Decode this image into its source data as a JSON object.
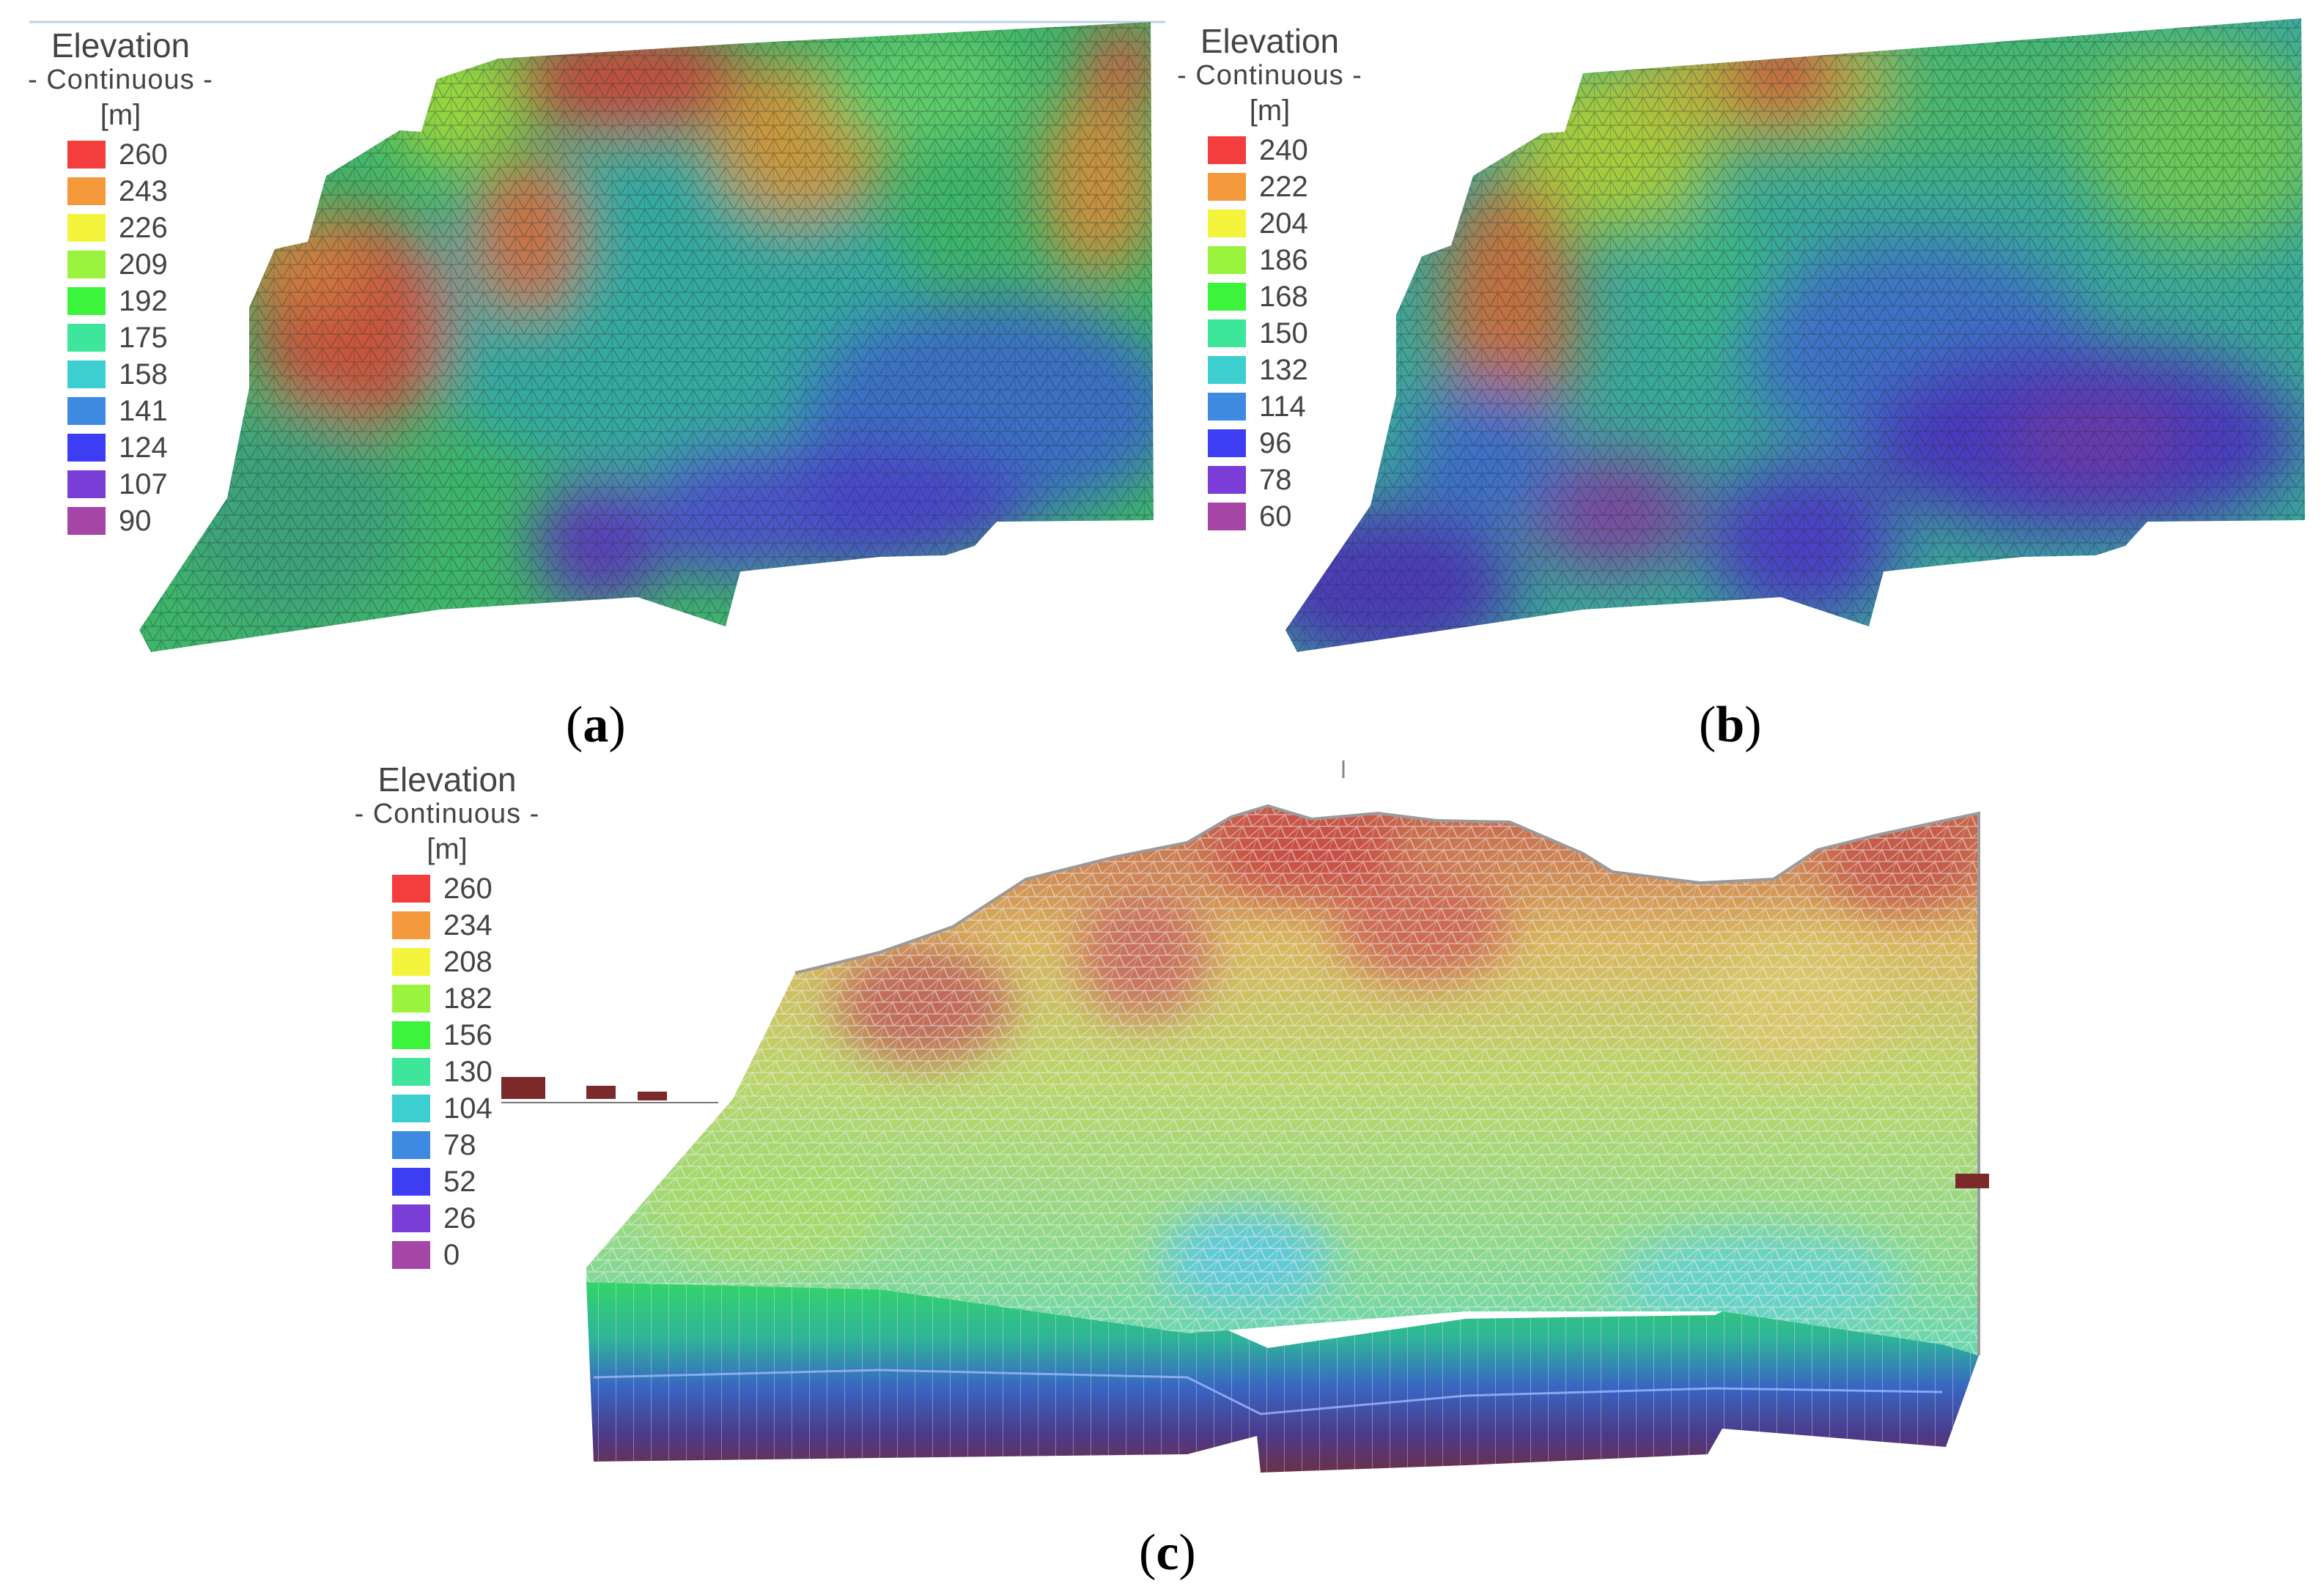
{
  "panels": {
    "a": {
      "legend": {
        "title": "Elevation",
        "subtitle": "- Continuous -",
        "unit": "[m]",
        "entries": [
          {
            "value": "260",
            "color": "#f43d3d"
          },
          {
            "value": "243",
            "color": "#f49a3d"
          },
          {
            "value": "226",
            "color": "#f4f43d"
          },
          {
            "value": "209",
            "color": "#9af43d"
          },
          {
            "value": "192",
            "color": "#3df43d"
          },
          {
            "value": "175",
            "color": "#3de69a"
          },
          {
            "value": "158",
            "color": "#3dcfcf"
          },
          {
            "value": "141",
            "color": "#3d8ae0"
          },
          {
            "value": "124",
            "color": "#3d3df4"
          },
          {
            "value": "107",
            "color": "#7a3dd6"
          },
          {
            "value": "90",
            "color": "#a545a5"
          }
        ]
      },
      "caption_open": "(",
      "caption_letter": "a",
      "caption_close": ")"
    },
    "b": {
      "legend": {
        "title": "Elevation",
        "subtitle": "- Continuous -",
        "unit": "[m]",
        "entries": [
          {
            "value": "240",
            "color": "#f43d3d"
          },
          {
            "value": "222",
            "color": "#f49a3d"
          },
          {
            "value": "204",
            "color": "#f4f43d"
          },
          {
            "value": "186",
            "color": "#9af43d"
          },
          {
            "value": "168",
            "color": "#3df43d"
          },
          {
            "value": "150",
            "color": "#3de69a"
          },
          {
            "value": "132",
            "color": "#3dcfcf"
          },
          {
            "value": "114",
            "color": "#3d8ae0"
          },
          {
            "value": "96",
            "color": "#3d3df4"
          },
          {
            "value": "78",
            "color": "#7a3dd6"
          },
          {
            "value": "60",
            "color": "#a545a5"
          }
        ]
      },
      "caption_open": "(",
      "caption_letter": "b",
      "caption_close": ")"
    },
    "c": {
      "legend": {
        "title": "Elevation",
        "subtitle": "- Continuous -",
        "unit": "[m]",
        "entries": [
          {
            "value": "260",
            "color": "#f43d3d"
          },
          {
            "value": "234",
            "color": "#f49a3d"
          },
          {
            "value": "208",
            "color": "#f4f43d"
          },
          {
            "value": "182",
            "color": "#9af43d"
          },
          {
            "value": "156",
            "color": "#3df43d"
          },
          {
            "value": "130",
            "color": "#3de69a"
          },
          {
            "value": "104",
            "color": "#3dcfcf"
          },
          {
            "value": "78",
            "color": "#3d8ae0"
          },
          {
            "value": "52",
            "color": "#3d3df4"
          },
          {
            "value": "26",
            "color": "#7a3dd6"
          },
          {
            "value": "0",
            "color": "#a545a5"
          }
        ]
      },
      "caption_open": "(",
      "caption_letter": "c",
      "caption_close": ")"
    }
  }
}
